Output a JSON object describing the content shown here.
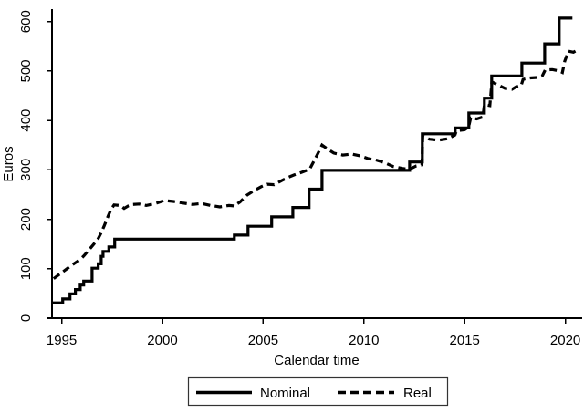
{
  "chart_data": {
    "type": "line",
    "title": "",
    "xlabel": "Calendar time",
    "ylabel": "Euros",
    "x_ticks": [
      1995,
      2000,
      2005,
      2010,
      2015,
      2020
    ],
    "y_ticks": [
      0,
      100,
      200,
      300,
      400,
      500,
      600
    ],
    "xlim": [
      1994.5,
      2020.85
    ],
    "ylim": [
      0,
      620
    ],
    "grid": false,
    "line_color": "#000000",
    "background_color": "#ffffff",
    "legend": {
      "position": "bottom-center",
      "entries": [
        "Nominal",
        "Real"
      ]
    },
    "series": [
      {
        "name": "Nominal",
        "line_style": "solid",
        "color": "#000000",
        "interpolation": "step-after",
        "points": [
          [
            1994.52,
            31
          ],
          [
            1995.05,
            39
          ],
          [
            1995.41,
            49
          ],
          [
            1995.68,
            58
          ],
          [
            1995.92,
            67
          ],
          [
            1996.09,
            75
          ],
          [
            1996.51,
            101
          ],
          [
            1996.81,
            110
          ],
          [
            1996.96,
            125
          ],
          [
            1997.05,
            135
          ],
          [
            1997.34,
            144
          ],
          [
            1997.63,
            160
          ],
          [
            2003.57,
            168
          ],
          [
            2004.25,
            186
          ],
          [
            2005.42,
            205
          ],
          [
            2006.47,
            224
          ],
          [
            2007.28,
            261
          ],
          [
            2007.92,
            299
          ],
          [
            2012.27,
            316
          ],
          [
            2012.9,
            373
          ],
          [
            2014.53,
            385
          ],
          [
            2015.21,
            415
          ],
          [
            2015.98,
            445
          ],
          [
            2016.34,
            490
          ],
          [
            2017.84,
            516
          ],
          [
            2018.97,
            555
          ],
          [
            2019.69,
            607
          ],
          [
            2020.35,
            607
          ]
        ]
      },
      {
        "name": "Real",
        "line_style": "dashed",
        "dash_pattern": [
          8,
          5
        ],
        "color": "#000000",
        "interpolation": "linear",
        "points": [
          [
            1994.6,
            80
          ],
          [
            1995.0,
            92
          ],
          [
            1995.3,
            101
          ],
          [
            1995.6,
            110
          ],
          [
            1995.9,
            118
          ],
          [
            1996.1,
            126
          ],
          [
            1996.35,
            138
          ],
          [
            1996.6,
            150
          ],
          [
            1996.8,
            160
          ],
          [
            1996.95,
            172
          ],
          [
            1997.1,
            186
          ],
          [
            1997.3,
            206
          ],
          [
            1997.45,
            220
          ],
          [
            1997.6,
            229
          ],
          [
            1997.9,
            228
          ],
          [
            1998.1,
            222
          ],
          [
            1998.3,
            227
          ],
          [
            1998.5,
            230
          ],
          [
            1998.85,
            231
          ],
          [
            1999.2,
            228
          ],
          [
            1999.65,
            232
          ],
          [
            2000.1,
            238
          ],
          [
            2000.55,
            236
          ],
          [
            2001.0,
            233
          ],
          [
            2001.5,
            230
          ],
          [
            2001.95,
            232
          ],
          [
            2002.4,
            228
          ],
          [
            2002.85,
            225
          ],
          [
            2003.3,
            228
          ],
          [
            2003.55,
            227
          ],
          [
            2003.85,
            235
          ],
          [
            2004.2,
            249
          ],
          [
            2004.55,
            258
          ],
          [
            2004.9,
            266
          ],
          [
            2005.2,
            271
          ],
          [
            2005.55,
            270
          ],
          [
            2005.9,
            278
          ],
          [
            2006.25,
            285
          ],
          [
            2006.55,
            290
          ],
          [
            2006.9,
            295
          ],
          [
            2007.3,
            301
          ],
          [
            2007.55,
            320
          ],
          [
            2007.8,
            340
          ],
          [
            2007.92,
            350
          ],
          [
            2008.2,
            342
          ],
          [
            2008.5,
            334
          ],
          [
            2008.95,
            330
          ],
          [
            2009.4,
            332
          ],
          [
            2009.85,
            328
          ],
          [
            2010.2,
            323
          ],
          [
            2010.6,
            320
          ],
          [
            2011.0,
            315
          ],
          [
            2011.45,
            307
          ],
          [
            2011.9,
            303
          ],
          [
            2012.25,
            301
          ],
          [
            2012.6,
            308
          ],
          [
            2012.88,
            310
          ],
          [
            2012.92,
            368
          ],
          [
            2013.25,
            362
          ],
          [
            2013.7,
            360
          ],
          [
            2014.15,
            363
          ],
          [
            2014.5,
            370
          ],
          [
            2014.6,
            379
          ],
          [
            2015.0,
            381
          ],
          [
            2015.2,
            387
          ],
          [
            2015.3,
            405
          ],
          [
            2015.6,
            403
          ],
          [
            2015.9,
            407
          ],
          [
            2015.98,
            432
          ],
          [
            2016.25,
            430
          ],
          [
            2016.35,
            478
          ],
          [
            2016.65,
            472
          ],
          [
            2017.0,
            465
          ],
          [
            2017.35,
            463
          ],
          [
            2017.55,
            468
          ],
          [
            2017.8,
            470
          ],
          [
            2017.9,
            483
          ],
          [
            2018.25,
            486
          ],
          [
            2018.6,
            487
          ],
          [
            2018.85,
            490
          ],
          [
            2019.0,
            502
          ],
          [
            2019.35,
            503
          ],
          [
            2019.7,
            500
          ],
          [
            2019.85,
            497
          ],
          [
            2019.97,
            520
          ],
          [
            2020.15,
            540
          ],
          [
            2020.4,
            538
          ],
          [
            2020.63,
            543
          ]
        ]
      }
    ]
  }
}
